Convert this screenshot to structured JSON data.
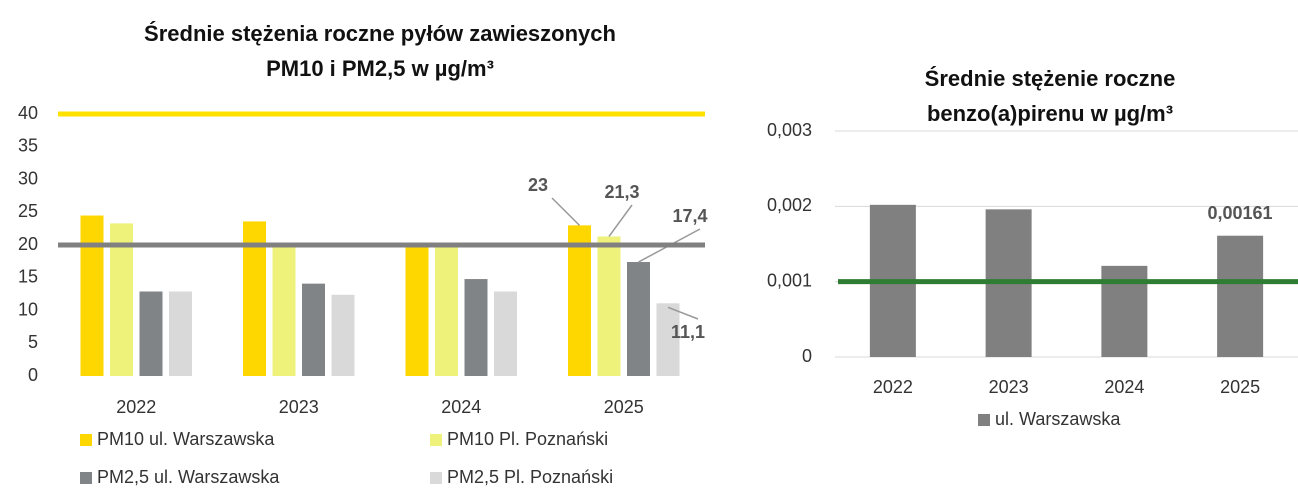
{
  "chart_data": [
    {
      "type": "bar",
      "title": [
        "Średnie stężenia roczne pyłów zawieszonych",
        "PM10 i PM2,5 w µg/m³"
      ],
      "categories": [
        "2022",
        "2023",
        "2024",
        "2025"
      ],
      "series": [
        {
          "name": "PM10 ul. Warszawska",
          "color": "#ffd700",
          "values": [
            24.5,
            23.6,
            20,
            23
          ],
          "value_labels": [
            null,
            null,
            null,
            "23"
          ]
        },
        {
          "name": "PM10 Pl. Poznański",
          "color": "#eef27a",
          "values": [
            23.3,
            20,
            20,
            21.3
          ],
          "value_labels": [
            null,
            null,
            null,
            "21,3"
          ]
        },
        {
          "name": "PM2,5 ul. Warszawska",
          "color": "#808487",
          "values": [
            12.9,
            14.1,
            14.8,
            17.4
          ],
          "value_labels": [
            null,
            null,
            null,
            "17,4"
          ]
        },
        {
          "name": "PM2,5 Pl. Poznański",
          "color": "#d9d9d9",
          "values": [
            12.9,
            12.4,
            12.9,
            11.1
          ],
          "value_labels": [
            null,
            null,
            null,
            "11,1"
          ]
        }
      ],
      "reference_lines": [
        {
          "value": 40,
          "color": "#ffe100"
        },
        {
          "value": 20,
          "color": "#808080"
        }
      ],
      "ylim": [
        0,
        40
      ],
      "yticks": [
        0,
        5,
        10,
        15,
        20,
        25,
        30,
        35,
        40
      ],
      "grid": false
    },
    {
      "type": "bar",
      "title": [
        "Średnie stężenie roczne",
        "benzo(a)pirenu w µg/m³"
      ],
      "categories": [
        "2022",
        "2023",
        "2024",
        "2025"
      ],
      "series": [
        {
          "name": "ul. Warszawska",
          "color": "#808080",
          "values": [
            0.00202,
            0.00196,
            0.00121,
            0.00161
          ],
          "value_labels": [
            null,
            null,
            null,
            "0,00161"
          ]
        }
      ],
      "reference_lines": [
        {
          "value": 0.001,
          "color": "#2e7d32"
        }
      ],
      "ylim": [
        0,
        0.003
      ],
      "yticks": [
        0,
        {
          "value": 0.001,
          "label": "0,001"
        },
        {
          "value": 0.002,
          "label": "0,002"
        },
        {
          "value": 0.003,
          "label": "0,003"
        }
      ],
      "grid": true
    }
  ]
}
